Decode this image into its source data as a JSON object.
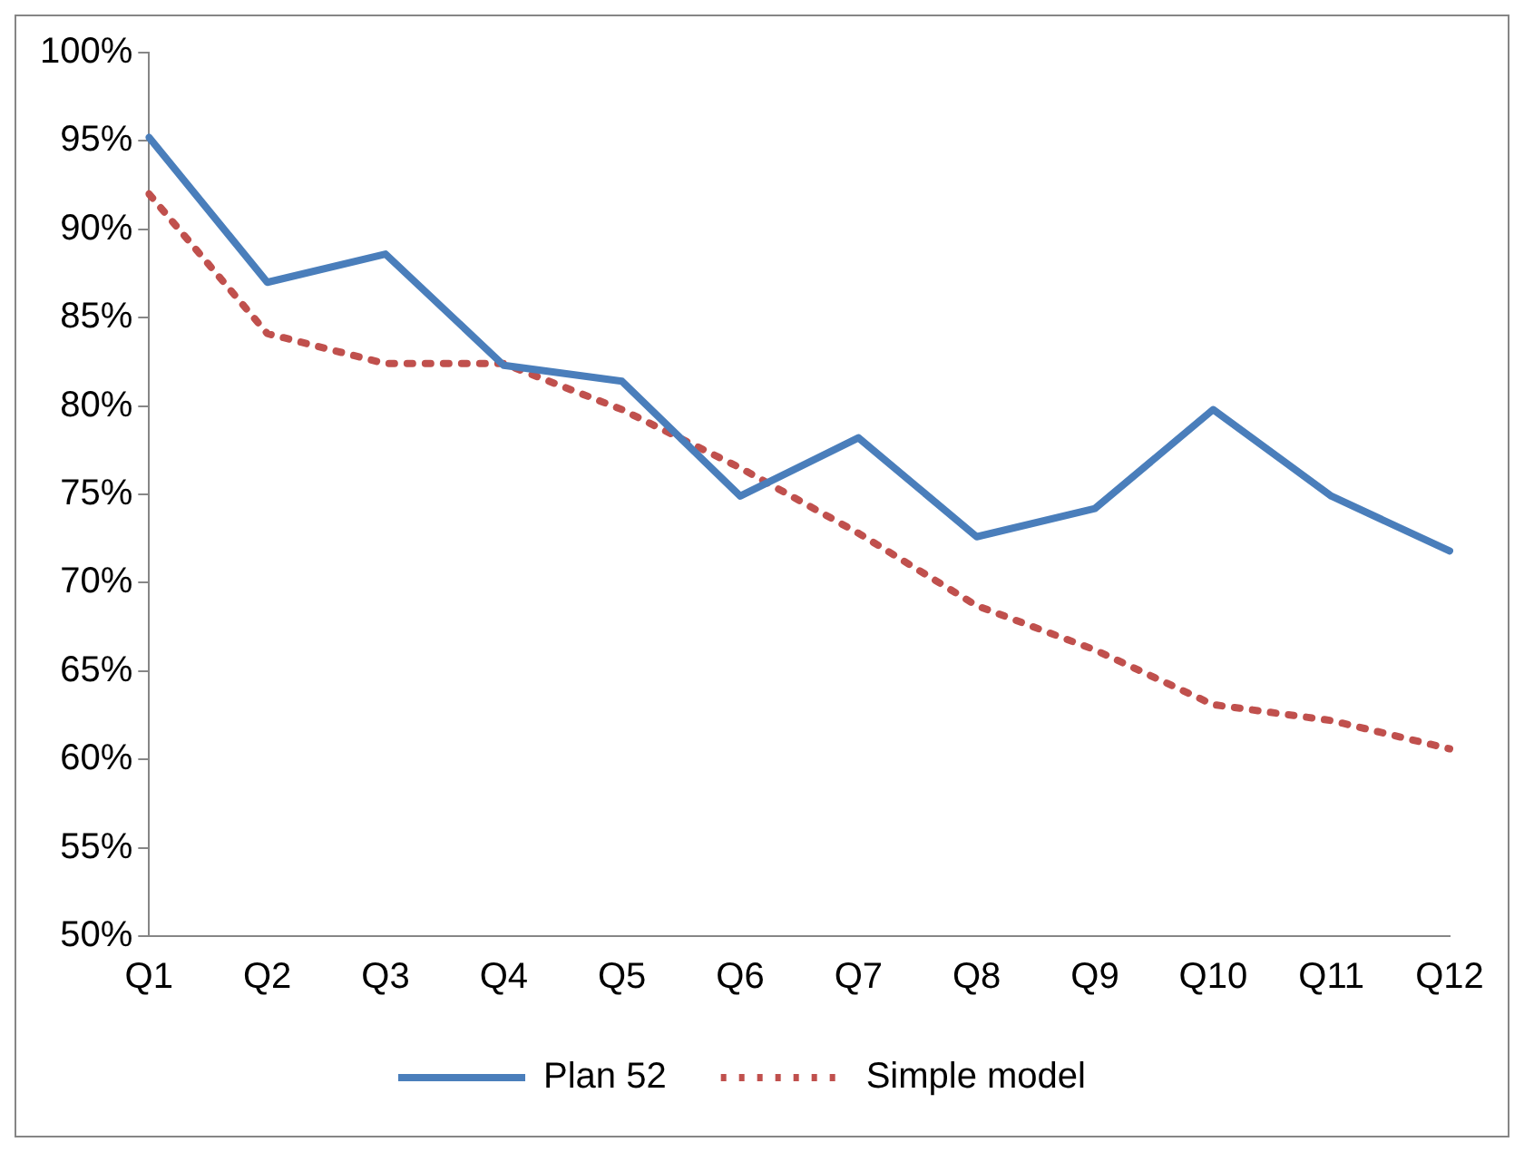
{
  "chart_data": {
    "type": "line",
    "categories": [
      "Q1",
      "Q2",
      "Q3",
      "Q4",
      "Q5",
      "Q6",
      "Q7",
      "Q8",
      "Q9",
      "Q10",
      "Q11",
      "Q12"
    ],
    "series": [
      {
        "name": "Plan 52",
        "color": "#4a7ebb",
        "line_style": "solid",
        "values": [
          95.2,
          87.0,
          88.6,
          82.3,
          81.4,
          74.9,
          78.2,
          72.6,
          74.2,
          79.8,
          74.9,
          71.8
        ]
      },
      {
        "name": "Simple model",
        "color": "#c0504d",
        "line_style": "dotted",
        "values": [
          92.0,
          84.1,
          82.4,
          82.4,
          79.8,
          76.5,
          72.8,
          68.7,
          66.2,
          63.1,
          62.2,
          60.6
        ]
      }
    ],
    "ylim": [
      50,
      100
    ],
    "yticks": [
      {
        "value": 50,
        "label": "50%"
      },
      {
        "value": 55,
        "label": "55%"
      },
      {
        "value": 60,
        "label": "60%"
      },
      {
        "value": 65,
        "label": "65%"
      },
      {
        "value": 70,
        "label": "70%"
      },
      {
        "value": 75,
        "label": "75%"
      },
      {
        "value": 80,
        "label": "80%"
      },
      {
        "value": 85,
        "label": "85%"
      },
      {
        "value": 90,
        "label": "90%"
      },
      {
        "value": 95,
        "label": "95%"
      },
      {
        "value": 100,
        "label": "100%"
      }
    ],
    "grid": false,
    "legend": "bottom",
    "marker": "none"
  }
}
